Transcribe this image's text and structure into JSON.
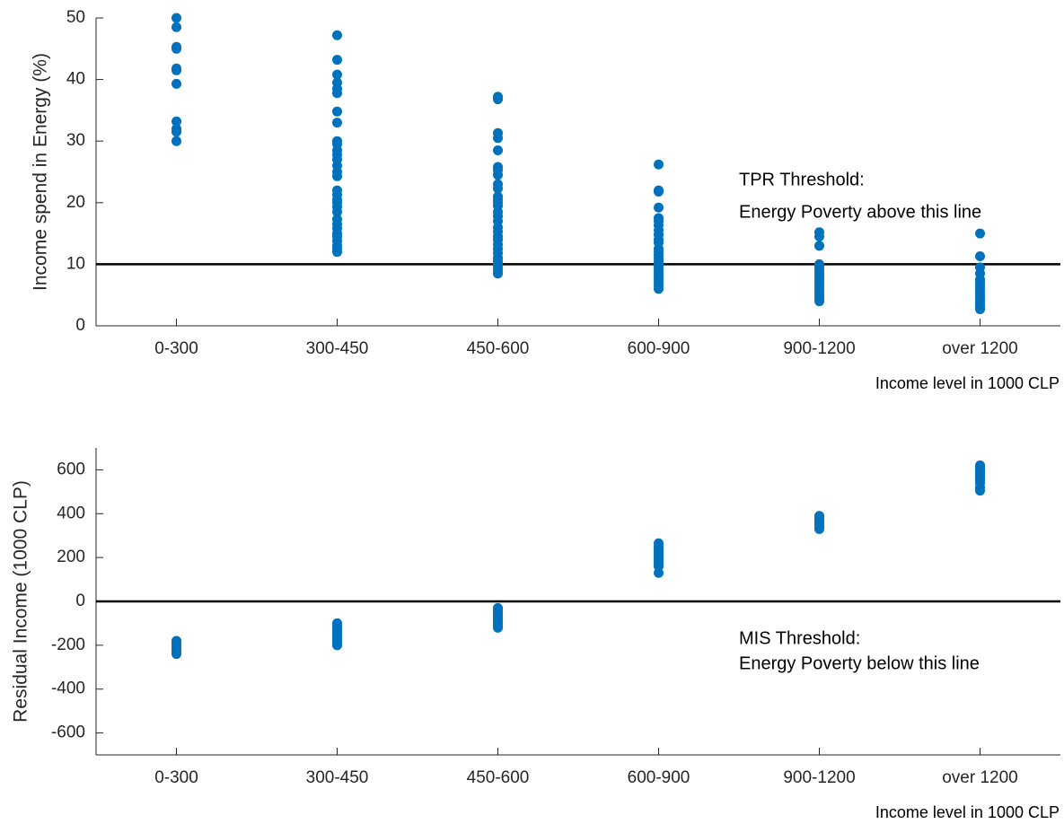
{
  "chart_data": [
    {
      "type": "scatter",
      "ylabel": "Income spend in Energy (%)",
      "xlabel": "Income level in 1000 CLP",
      "categories": [
        "0-300",
        "300-450",
        "450-600",
        "600-900",
        "900-1200",
        "over 1200"
      ],
      "values": [
        [
          50,
          48.5,
          45.3,
          45,
          41.8,
          41.5,
          39.3,
          33.2,
          32,
          31.5,
          30
        ],
        [
          47.2,
          43.2,
          40.8,
          39.5,
          38.5,
          37.8,
          34.8,
          33,
          30,
          29.5,
          28.5,
          27.8,
          27,
          26,
          25,
          24.3,
          22,
          21.3,
          20.5,
          20,
          19.3,
          18.5,
          17.3,
          16.5,
          15.8,
          15,
          14.5,
          13.8,
          13,
          12.5,
          12
        ],
        [
          37.2,
          36.8,
          31.3,
          30.5,
          28.5,
          25.8,
          25.3,
          24.5,
          23,
          22.3,
          21,
          20.5,
          20,
          19.5,
          18.5,
          17.8,
          17,
          16,
          15.3,
          14.5,
          14,
          13.2,
          12.5,
          11.8,
          11,
          10.5,
          10,
          9.5,
          9,
          8.5
        ],
        [
          26.2,
          22,
          21.8,
          19.2,
          17.5,
          17,
          16.3,
          15.5,
          14.8,
          14,
          13.5,
          12.5,
          12,
          11.5,
          11,
          10.5,
          10,
          9.5,
          9,
          8.5,
          8,
          7.5,
          7,
          6.5,
          6
        ],
        [
          15.2,
          14.5,
          13,
          10,
          9.5,
          9,
          8.5,
          8,
          7.5,
          7,
          6.5,
          6,
          5.5,
          5,
          4.5,
          4
        ],
        [
          15,
          11.3,
          9.5,
          8.5,
          7.5,
          7,
          6.5,
          6,
          5.5,
          5,
          4.5,
          4,
          3.5,
          3,
          2.7
        ]
      ],
      "color": "#0072bd",
      "ylim": [
        0,
        50
      ],
      "yticks": [
        0,
        10,
        20,
        30,
        40,
        50
      ],
      "hline": 10,
      "annotation": [
        "TPR Threshold:",
        "Energy Poverty above this line"
      ]
    },
    {
      "type": "scatter",
      "ylabel": "Residual Income (1000 CLP)",
      "xlabel": "Income level in 1000 CLP",
      "categories": [
        "0-300",
        "300-450",
        "450-600",
        "600-900",
        "900-1200",
        "over 1200"
      ],
      "values": [
        [
          -180,
          -190,
          -200,
          -210,
          -220,
          -230,
          -240
        ],
        [
          -100,
          -110,
          -120,
          -130,
          -140,
          -150,
          -160,
          -170,
          -180,
          -190,
          -200
        ],
        [
          -30,
          -40,
          -50,
          -60,
          -70,
          -80,
          -90,
          -100,
          -110,
          -120
        ],
        [
          265,
          250,
          240,
          230,
          220,
          210,
          200,
          190,
          180,
          170,
          160,
          130
        ],
        [
          390,
          380,
          370,
          360,
          350,
          340,
          330
        ],
        [
          620,
          610,
          600,
          590,
          580,
          570,
          560,
          550,
          540,
          520,
          505
        ]
      ],
      "color": "#0072bd",
      "ylim": [
        -700,
        700
      ],
      "yticks": [
        -600,
        -400,
        -200,
        0,
        200,
        400,
        600
      ],
      "hline": 0,
      "annotation": [
        "MIS Threshold:",
        "Energy Poverty below this line"
      ]
    }
  ]
}
